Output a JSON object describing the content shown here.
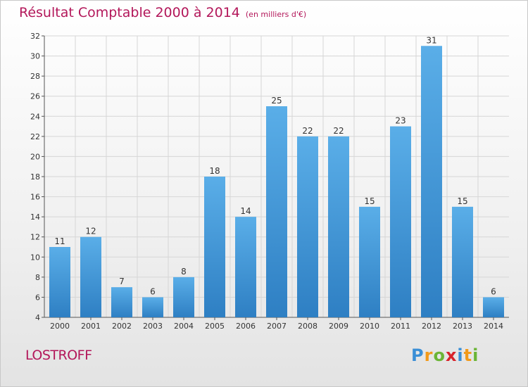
{
  "title": "Résultat Comptable 2000 à 2014",
  "subtitle": "(en milliers d'€)",
  "commune": "LOSTROFF",
  "brand": {
    "letters": [
      "P",
      "r",
      "o",
      "x",
      "i",
      "t",
      "i"
    ],
    "colors": [
      "#3a8fd6",
      "#f29a1a",
      "#6bb536",
      "#d8232a",
      "#3a8fd6",
      "#f29a1a",
      "#6bb536"
    ]
  },
  "colors": {
    "bar_top": "#5aaee8",
    "bar_bottom": "#2e7fc3",
    "title": "#b3175a",
    "grid": "#d6d6d6"
  },
  "chart_data": {
    "type": "bar",
    "categories": [
      "2000",
      "2001",
      "2002",
      "2003",
      "2004",
      "2005",
      "2006",
      "2007",
      "2008",
      "2009",
      "2010",
      "2011",
      "2012",
      "2013",
      "2014"
    ],
    "values": [
      11,
      12,
      7,
      6,
      8,
      18,
      14,
      25,
      22,
      22,
      15,
      23,
      31,
      15,
      6
    ],
    "ylim": [
      4,
      32
    ],
    "yticks": [
      4,
      6,
      8,
      10,
      12,
      14,
      16,
      18,
      20,
      22,
      24,
      26,
      28,
      30,
      32
    ],
    "grid": true,
    "data_labels": true,
    "xlabel": "",
    "ylabel": ""
  }
}
